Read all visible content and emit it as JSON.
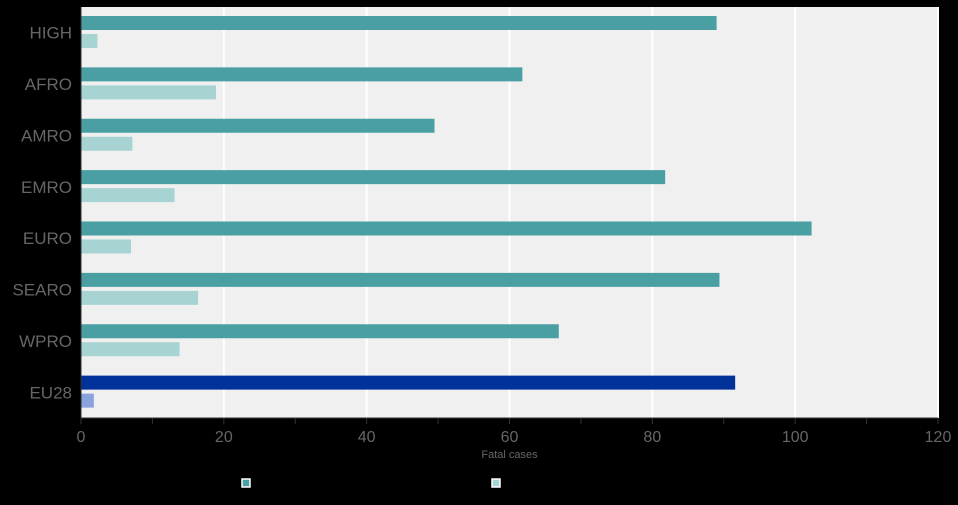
{
  "chart_data": {
    "type": "bar",
    "orientation": "horizontal",
    "categories": [
      "HIGH",
      "AFRO",
      "AMRO",
      "EMRO",
      "EURO",
      "SEARO",
      "WPRO",
      "EU28"
    ],
    "series": [
      {
        "values": [
          89,
          61.8,
          49.5,
          81.8,
          102.3,
          89.4,
          66.9,
          91.6
        ]
      },
      {
        "values": [
          2.3,
          18.9,
          7.2,
          13.1,
          7,
          16.4,
          13.8,
          1.8
        ]
      }
    ],
    "xlabel": "Fatal cases",
    "ylabel": "",
    "xlim": [
      0,
      120
    ],
    "xticks": [
      0,
      20,
      40,
      60,
      80,
      100,
      120
    ],
    "grid": "vertical",
    "legend_position": "bottom",
    "colors": {
      "series_1": "#4a9fa2",
      "series_2": "#a8d3d3",
      "highlight_series_1": "#01329a",
      "highlight_series_2": "#8aa3dd",
      "plot_background": "#f0f0f0",
      "page_background": "#000000",
      "gridline": "#ffffff",
      "text": "#666666"
    },
    "highlight_category": "EU28"
  }
}
